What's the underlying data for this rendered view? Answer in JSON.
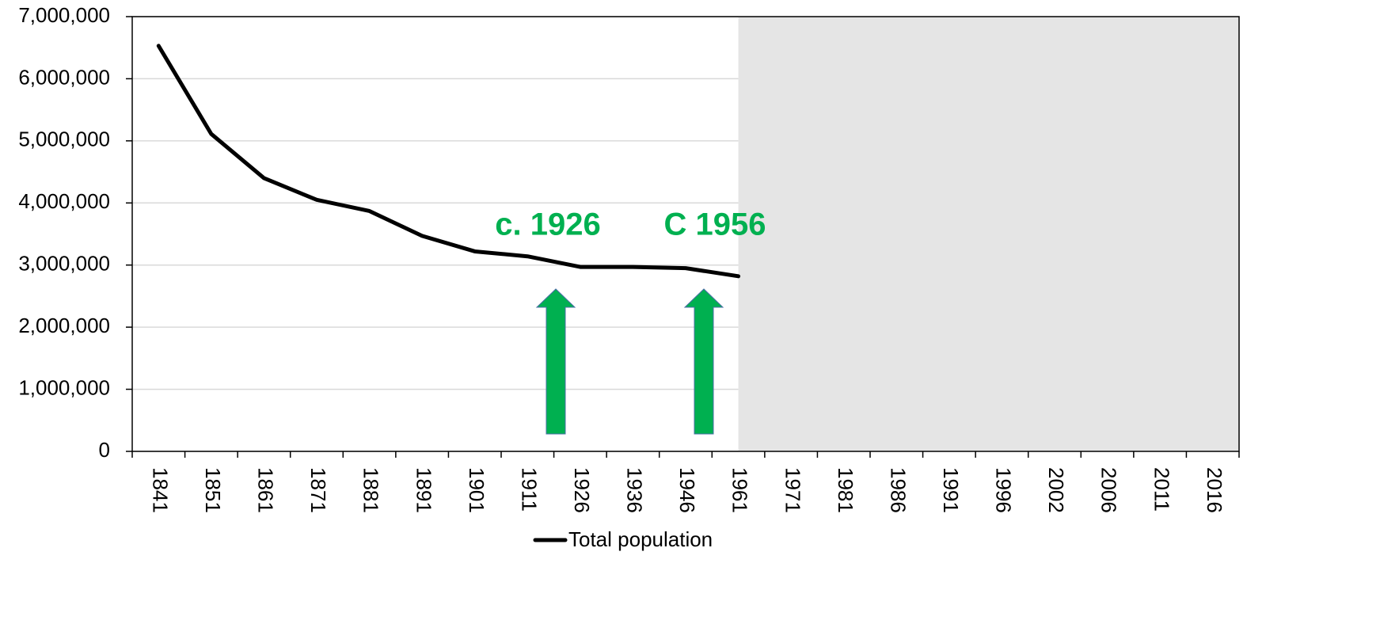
{
  "chart_data": {
    "type": "line",
    "categories": [
      "1841",
      "1851",
      "1861",
      "1871",
      "1881",
      "1891",
      "1901",
      "1911",
      "1926",
      "1936",
      "1946",
      "1961",
      "1971",
      "1981",
      "1986",
      "1991",
      "1996",
      "2002",
      "2006",
      "2011",
      "2016"
    ],
    "series": [
      {
        "name": "Total population",
        "color": "#000000",
        "values": [
          6530000,
          5110000,
          4400000,
          4050000,
          3870000,
          3470000,
          3220000,
          3140000,
          2970000,
          2970000,
          2950000,
          2820000,
          null,
          null,
          null,
          null,
          null,
          null,
          null,
          null,
          null
        ]
      }
    ],
    "ylim": [
      0,
      7000000
    ],
    "yticks": [
      0,
      {
        "value": 1000000,
        "label": "1,000,000"
      },
      {
        "value": 2000000,
        "label": "2,000,000"
      },
      {
        "value": 3000000,
        "label": "3,000,000"
      },
      {
        "value": 4000000,
        "label": "4,000,000"
      },
      {
        "value": 5000000,
        "label": "5,000,000"
      },
      {
        "value": 6000000,
        "label": "6,000,000"
      },
      {
        "value": 7000000,
        "label": "7,000,000"
      }
    ],
    "annotations": [
      "c. 1926",
      "C 1956"
    ],
    "grid": true,
    "legend": "bottom"
  }
}
